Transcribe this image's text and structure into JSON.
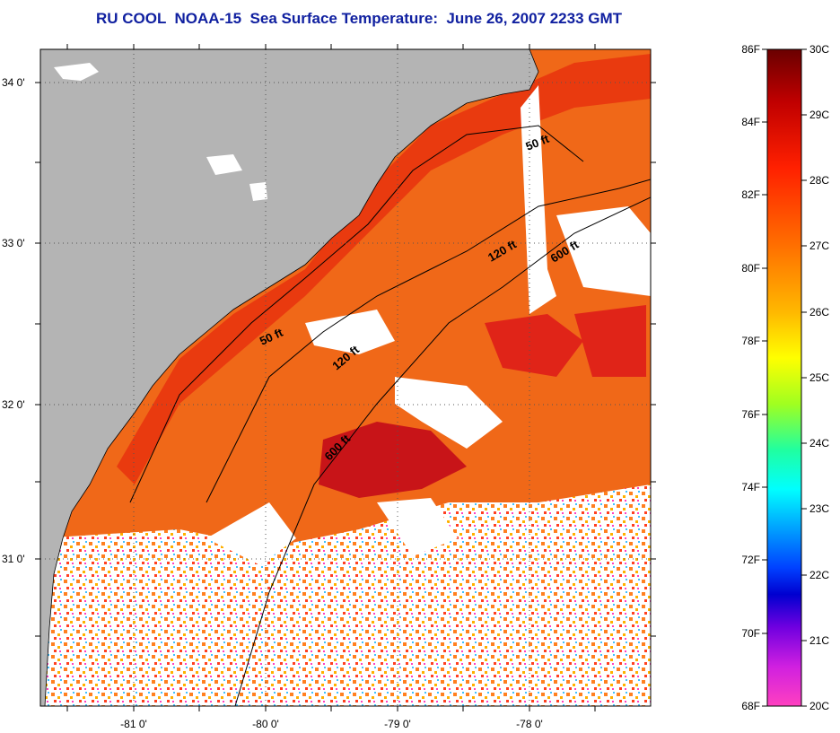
{
  "title": "RU COOL  NOAA-15  Sea Surface Temperature:  June 26, 2007 2233 GMT",
  "map": {
    "lat_labels": [
      "34 0'",
      "33 0'",
      "32 0'",
      "31 0'"
    ],
    "lon_labels": [
      "-81 0'",
      "-80 0'",
      "-79 0'",
      "-78 0'"
    ],
    "depth_labels": [
      "50 ft",
      "50 ft",
      "120 ft",
      "120 ft",
      "600 ft",
      "600 ft"
    ],
    "colors": {
      "land": "#b4b4b4",
      "cloud": "#ffffff",
      "warm": "#f05a14",
      "hot": "#d01818",
      "nearshore": "#e83010"
    }
  },
  "colorbar": {
    "fahrenheit": [
      "86F",
      "84F",
      "82F",
      "80F",
      "78F",
      "76F",
      "74F",
      "72F",
      "70F",
      "68F"
    ],
    "celsius": [
      "30C",
      "29C",
      "28C",
      "27C",
      "26C",
      "25C",
      "24C",
      "23C",
      "22C",
      "21C",
      "20C"
    ],
    "gradient": [
      "#7a0000",
      "#c00000",
      "#ff1a00",
      "#ff6a00",
      "#ffb000",
      "#ffff00",
      "#80ff00",
      "#00ff80",
      "#00ffff",
      "#0080ff",
      "#0000ff",
      "#8000ff",
      "#ff00ff",
      "#ff40c0"
    ]
  }
}
